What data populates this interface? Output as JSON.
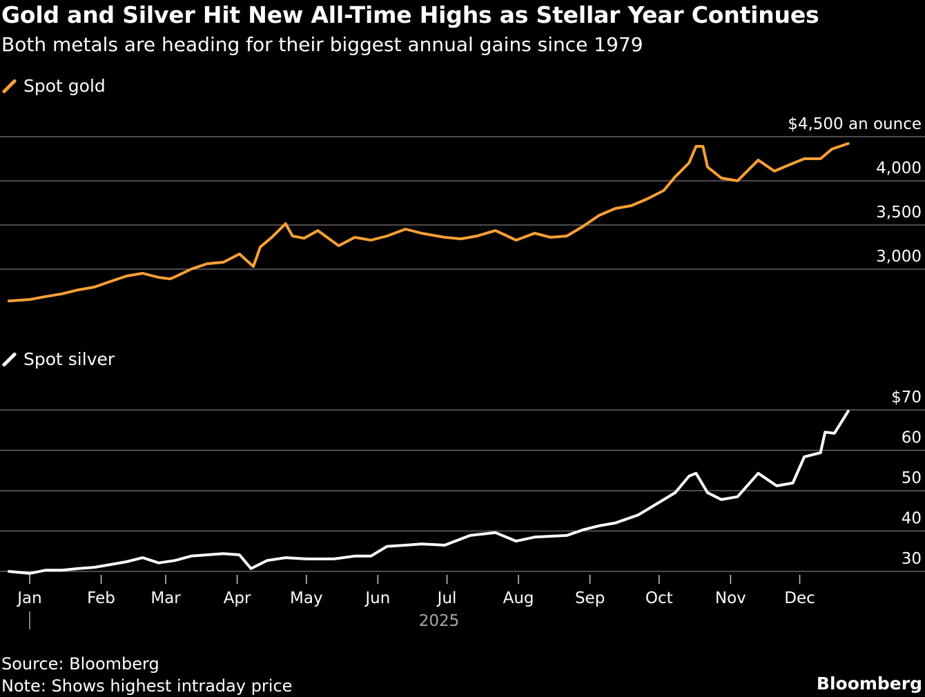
{
  "title": "Gold and Silver Hit New All-Time Highs as Stellar Year Continues",
  "subtitle": "Both metals are heading for their biggest annual gains since 1979",
  "source": "Source: Bloomberg",
  "note": "Note: Shows highest intraday price",
  "brand": "Bloomberg",
  "chart_data": [
    {
      "type": "line",
      "series_name": "Spot gold",
      "color": "#f7a035",
      "unit_label": "$4,500 an ounce",
      "yticks": [
        3000,
        3500,
        4000,
        4500
      ],
      "ytick_labels": [
        "3,000",
        "3,500",
        "4,000",
        "$4,500 an ounce"
      ],
      "ylim": [
        2600,
        4500
      ],
      "grid": true,
      "points": [
        [
          "2024-12-23",
          2640
        ],
        [
          "2025-01-01",
          2656
        ],
        [
          "2025-01-08",
          2690
        ],
        [
          "2025-01-15",
          2720
        ],
        [
          "2025-01-22",
          2765
        ],
        [
          "2025-01-29",
          2797
        ],
        [
          "2025-02-05",
          2860
        ],
        [
          "2025-02-12",
          2922
        ],
        [
          "2025-02-19",
          2953
        ],
        [
          "2025-02-26",
          2906
        ],
        [
          "2025-03-03",
          2890
        ],
        [
          "2025-03-07",
          2937
        ],
        [
          "2025-03-12",
          3000
        ],
        [
          "2025-03-19",
          3062
        ],
        [
          "2025-03-26",
          3078
        ],
        [
          "2025-04-02",
          3172
        ],
        [
          "2025-04-08",
          3030
        ],
        [
          "2025-04-11",
          3250
        ],
        [
          "2025-04-16",
          3360
        ],
        [
          "2025-04-22",
          3515
        ],
        [
          "2025-04-25",
          3375
        ],
        [
          "2025-04-30",
          3350
        ],
        [
          "2025-05-06",
          3437
        ],
        [
          "2025-05-15",
          3265
        ],
        [
          "2025-05-22",
          3360
        ],
        [
          "2025-05-29",
          3328
        ],
        [
          "2025-06-05",
          3375
        ],
        [
          "2025-06-13",
          3453
        ],
        [
          "2025-06-20",
          3406
        ],
        [
          "2025-06-30",
          3360
        ],
        [
          "2025-07-07",
          3343
        ],
        [
          "2025-07-14",
          3375
        ],
        [
          "2025-07-22",
          3437
        ],
        [
          "2025-07-31",
          3328
        ],
        [
          "2025-08-08",
          3406
        ],
        [
          "2025-08-15",
          3360
        ],
        [
          "2025-08-22",
          3375
        ],
        [
          "2025-08-29",
          3484
        ],
        [
          "2025-09-05",
          3609
        ],
        [
          "2025-09-12",
          3687
        ],
        [
          "2025-09-19",
          3719
        ],
        [
          "2025-09-26",
          3797
        ],
        [
          "2025-10-03",
          3890
        ],
        [
          "2025-10-08",
          4047
        ],
        [
          "2025-10-14",
          4203
        ],
        [
          "2025-10-17",
          4390
        ],
        [
          "2025-10-20",
          4390
        ],
        [
          "2025-10-22",
          4156
        ],
        [
          "2025-10-28",
          4031
        ],
        [
          "2025-11-04",
          4000
        ],
        [
          "2025-11-13",
          4234
        ],
        [
          "2025-11-20",
          4109
        ],
        [
          "2025-11-27",
          4187
        ],
        [
          "2025-12-03",
          4250
        ],
        [
          "2025-12-10",
          4250
        ],
        [
          "2025-12-15",
          4359
        ],
        [
          "2025-12-22",
          4422
        ]
      ]
    },
    {
      "type": "line",
      "series_name": "Spot silver",
      "color": "#ffffff",
      "yticks": [
        30,
        40,
        50,
        60,
        70
      ],
      "ytick_labels": [
        "30",
        "40",
        "50",
        "60",
        "$70"
      ],
      "ylim": [
        30,
        70
      ],
      "grid": true,
      "points": [
        [
          "2024-12-23",
          30.0
        ],
        [
          "2025-01-01",
          29.5
        ],
        [
          "2025-01-08",
          30.3
        ],
        [
          "2025-01-15",
          30.3
        ],
        [
          "2025-01-22",
          30.7
        ],
        [
          "2025-01-29",
          31.0
        ],
        [
          "2025-02-05",
          31.7
        ],
        [
          "2025-02-12",
          32.4
        ],
        [
          "2025-02-19",
          33.4
        ],
        [
          "2025-02-26",
          32.1
        ],
        [
          "2025-03-05",
          32.7
        ],
        [
          "2025-03-12",
          33.8
        ],
        [
          "2025-03-19",
          34.1
        ],
        [
          "2025-03-26",
          34.4
        ],
        [
          "2025-04-02",
          34.1
        ],
        [
          "2025-04-07",
          30.7
        ],
        [
          "2025-04-14",
          32.7
        ],
        [
          "2025-04-22",
          33.4
        ],
        [
          "2025-05-01",
          33.1
        ],
        [
          "2025-05-13",
          33.1
        ],
        [
          "2025-05-22",
          33.8
        ],
        [
          "2025-05-29",
          33.8
        ],
        [
          "2025-06-05",
          36.2
        ],
        [
          "2025-06-13",
          36.5
        ],
        [
          "2025-06-20",
          36.8
        ],
        [
          "2025-06-30",
          36.5
        ],
        [
          "2025-07-11",
          38.9
        ],
        [
          "2025-07-22",
          39.6
        ],
        [
          "2025-07-31",
          37.5
        ],
        [
          "2025-08-08",
          38.5
        ],
        [
          "2025-08-22",
          38.9
        ],
        [
          "2025-08-29",
          40.3
        ],
        [
          "2025-09-05",
          41.3
        ],
        [
          "2025-09-12",
          42.0
        ],
        [
          "2025-09-22",
          44.0
        ],
        [
          "2025-10-01",
          47.1
        ],
        [
          "2025-10-08",
          49.5
        ],
        [
          "2025-10-14",
          53.6
        ],
        [
          "2025-10-17",
          54.3
        ],
        [
          "2025-10-22",
          49.5
        ],
        [
          "2025-10-28",
          47.8
        ],
        [
          "2025-11-04",
          48.5
        ],
        [
          "2025-11-13",
          54.3
        ],
        [
          "2025-11-21",
          51.2
        ],
        [
          "2025-11-28",
          51.9
        ],
        [
          "2025-12-03",
          58.4
        ],
        [
          "2025-12-10",
          59.4
        ],
        [
          "2025-12-12",
          64.5
        ],
        [
          "2025-12-16",
          64.2
        ],
        [
          "2025-12-22",
          69.7
        ]
      ]
    }
  ],
  "x_axis": {
    "months": [
      "Jan",
      "Feb",
      "Mar",
      "Apr",
      "May",
      "Jun",
      "Jul",
      "Aug",
      "Sep",
      "Oct",
      "Nov",
      "Dec"
    ],
    "year": "2025"
  }
}
